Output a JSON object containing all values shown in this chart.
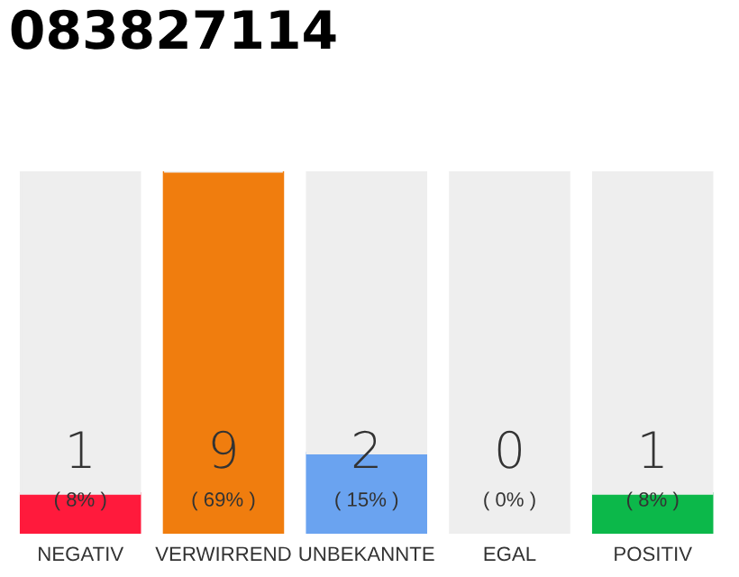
{
  "chart_data": {
    "type": "bar",
    "title": "083827114",
    "stacked": true,
    "categories": [
      "NEGATIV",
      "VERWIRREND",
      "UNBEKANNTE",
      "EGAL",
      "POSITIV"
    ],
    "series": [
      {
        "colors": [
          "#ff1a3c",
          "#f07d0e",
          "#6aa3f0",
          "#aaaaaa",
          "#0cb84a"
        ],
        "values": [
          1,
          9,
          2,
          0,
          1
        ],
        "value_labels": [
          "1\n( 8% )",
          "9\n( 69% )",
          "2\n( 15% )",
          "0\n( 0% )",
          "1\n( 8% )"
        ]
      },
      {
        "color": "#eeeeee",
        "values": [
          8,
          0,
          7,
          9,
          8
        ]
      }
    ],
    "grid": false,
    "legend": false
  }
}
